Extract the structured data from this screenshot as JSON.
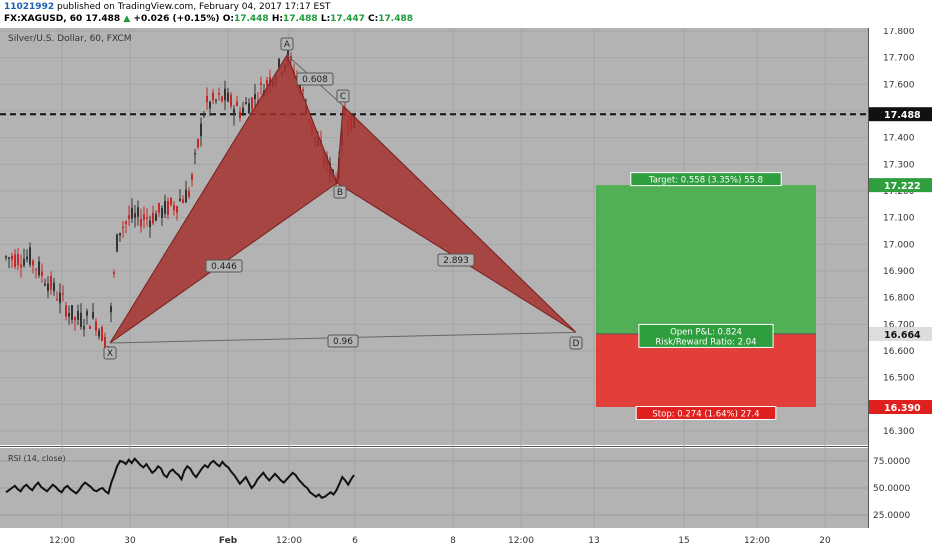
{
  "header": {
    "id": "11021992",
    "published": "published on TradingView.com, February 04, 2017 17:17 EST",
    "symbol": "FX:XAGUSD, 60",
    "last": "17.488",
    "change": "+0.026 (+0.15%)",
    "o_label": "O:",
    "o": "17.448",
    "h_label": "H:",
    "h": "17.488",
    "l_label": "L:",
    "l": "17.447",
    "c_label": "C:",
    "c": "17.488"
  },
  "chart_title": "Silver/U.S. Dollar, 60, FXCM",
  "rsi_label": "RSI (14, close)",
  "colors": {
    "bg": "#b3b3b3",
    "pattern": "#a4312e",
    "target": "#4caf50",
    "stop": "#e53935",
    "grid": "#a8a8a8",
    "axis_bg": "#ffffff"
  },
  "chart_data": {
    "type": "line",
    "y_ticks": [
      "17.800",
      "17.700",
      "17.600",
      "17.500",
      "17.400",
      "17.300",
      "17.200",
      "17.100",
      "17.000",
      "16.900",
      "16.800",
      "16.700",
      "16.600",
      "16.500",
      "16.400",
      "16.300"
    ],
    "x_ticks": [
      "12:00",
      "30",
      "Feb",
      "12:00",
      "6",
      "8",
      "12:00",
      "13",
      "15",
      "12:00",
      "20"
    ],
    "ylim": [
      16.25,
      17.82
    ],
    "price_line": "17.488",
    "target_price": "17.222",
    "entry_price": "16.664",
    "stop_price": "16.390",
    "harmonic": {
      "points": [
        {
          "name": "X",
          "price": 16.63
        },
        {
          "name": "A",
          "price": 17.71
        },
        {
          "name": "B",
          "price": 17.23
        },
        {
          "name": "C",
          "price": 17.52
        },
        {
          "name": "D",
          "price": 16.67
        }
      ],
      "ratios": {
        "XB": "0.446",
        "AC": "0.608",
        "BD": "2.893",
        "XD": "0.96"
      }
    },
    "position": {
      "target_label": "Target: 0.558 (3.35%) 55.8",
      "open_pl": "Open P&L: 0.824",
      "rr": "Risk/Reward Ratio: 2.04",
      "stop_label": "Stop: 0.274 (1.64%) 27.4"
    },
    "rsi": {
      "ticks": [
        "75.0000",
        "50.0000",
        "25.0000"
      ],
      "ylim": [
        15,
        85
      ],
      "values": [
        46,
        48,
        50,
        52,
        49,
        47,
        51,
        53,
        50,
        48,
        52,
        55,
        51,
        49,
        47,
        50,
        53,
        51,
        48,
        46,
        50,
        52,
        49,
        47,
        45,
        48,
        52,
        55,
        53,
        51,
        48,
        47,
        49,
        50,
        47,
        45,
        55,
        62,
        70,
        75,
        74,
        72,
        76,
        73,
        77,
        74,
        71,
        69,
        72,
        68,
        64,
        66,
        70,
        68,
        62,
        60,
        65,
        67,
        64,
        62,
        58,
        66,
        70,
        68,
        63,
        60,
        64,
        68,
        71,
        69,
        73,
        75,
        72,
        70,
        74,
        71,
        69,
        65,
        62,
        58,
        54,
        57,
        60,
        55,
        50,
        53,
        58,
        61,
        64,
        60,
        57,
        60,
        63,
        60,
        57,
        55,
        58,
        61,
        64,
        62,
        58,
        55,
        52,
        50,
        46,
        44,
        42,
        44,
        41,
        42,
        44,
        46,
        44,
        48,
        54,
        60,
        57,
        53,
        58,
        62
      ]
    }
  }
}
